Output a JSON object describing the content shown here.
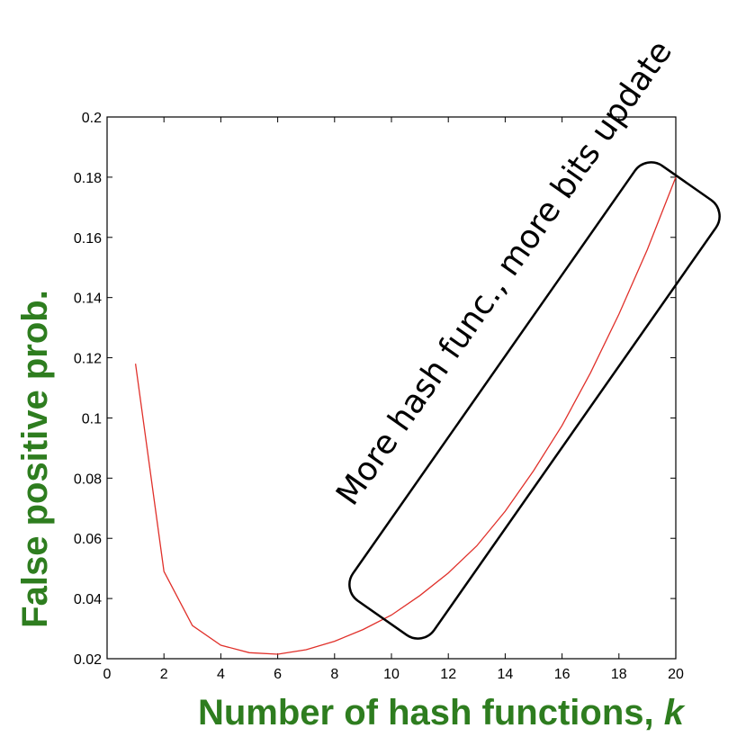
{
  "chart_data": {
    "type": "line",
    "title": "",
    "xlabel": "Number of hash functions, ",
    "xlabel_var": "k",
    "ylabel": "False positive prob.",
    "xlim": [
      0,
      20
    ],
    "ylim": [
      0.02,
      0.2
    ],
    "xticks": [
      0,
      2,
      4,
      6,
      8,
      10,
      12,
      14,
      16,
      18,
      20
    ],
    "yticks": [
      0.02,
      0.04,
      0.06,
      0.08,
      0.1,
      0.12,
      0.14,
      0.16,
      0.18,
      0.2
    ],
    "ytick_labels": [
      "0.02",
      "0.04",
      "0.06",
      "0.08",
      "0.1",
      "0.12",
      "0.14",
      "0.16",
      "0.18",
      "0.2"
    ],
    "grid": false,
    "series": [
      {
        "color": "#e0302a",
        "x": [
          1,
          2,
          3,
          4,
          5,
          6,
          7,
          8,
          9,
          10,
          11,
          12,
          13,
          14,
          15,
          16,
          17,
          18,
          19,
          20
        ],
        "y": [
          0.118,
          0.049,
          0.031,
          0.0245,
          0.022,
          0.0215,
          0.023,
          0.0258,
          0.0297,
          0.0345,
          0.041,
          0.0485,
          0.0575,
          0.069,
          0.0825,
          0.0975,
          0.115,
          0.1345,
          0.156,
          0.18
        ]
      }
    ],
    "annotation": {
      "text": "More hash func., more bits update",
      "color": "#000000"
    }
  }
}
